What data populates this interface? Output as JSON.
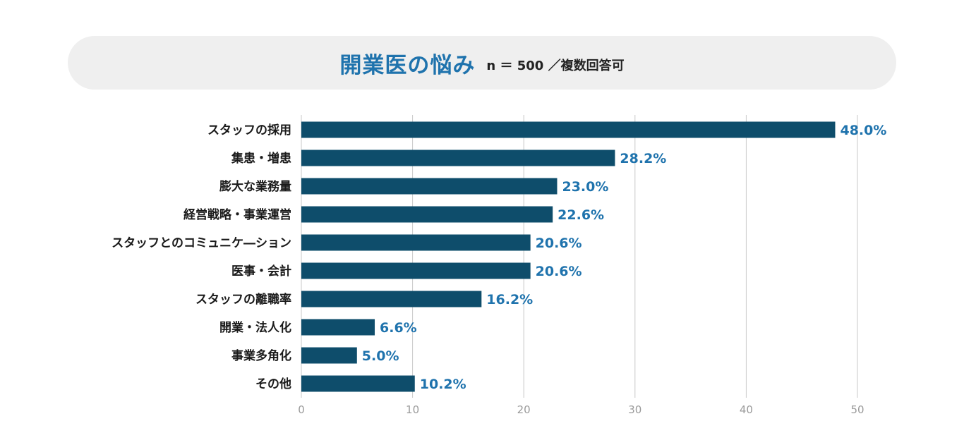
{
  "header": {
    "title": "開業医の悩み",
    "subtitle": "n ＝ 500 ／複数回答可"
  },
  "colors": {
    "bar": "#0e4d6b",
    "value_label": "#1f73ad",
    "category_label": "#1a1a1a",
    "grid": "#c8c8c8",
    "tick_label": "#9a9a9a",
    "header_bg": "#efefef"
  },
  "chart_data": {
    "type": "bar",
    "orientation": "horizontal",
    "categories": [
      "スタッフの採用",
      "集患・増患",
      "膨大な業務量",
      "経営戦略・事業運営",
      "スタッフとのコミュニケ―ション",
      "医事・会計",
      "スタッフの離職率",
      "開業・法人化",
      "事業多角化",
      "その他"
    ],
    "values": [
      48.0,
      28.2,
      23.0,
      22.6,
      20.6,
      20.6,
      16.2,
      6.6,
      5.0,
      10.2
    ],
    "value_labels": [
      "48.0%",
      "28.2%",
      "23.0%",
      "22.6%",
      "20.6%",
      "20.6%",
      "16.2%",
      "6.6%",
      "5.0%",
      "10.2%"
    ],
    "xlim": [
      0,
      50
    ],
    "xticks": [
      0,
      10,
      20,
      30,
      40,
      50
    ],
    "grid": "vertical"
  }
}
